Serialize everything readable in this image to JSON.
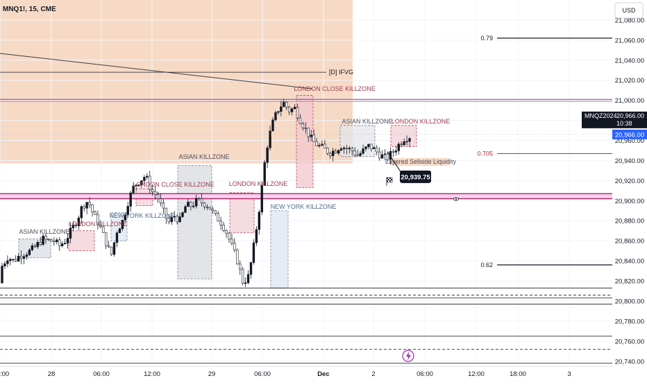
{
  "header": {
    "title": "MNQ1!, 15, CME",
    "currency": "USD"
  },
  "chart_data": {
    "type": "candlestick",
    "y_axis": {
      "range": [
        20735,
        21100
      ],
      "ticks": [
        "21,080.00",
        "21,060.00",
        "21,040.00",
        "21,020.00",
        "21,000.00",
        "20,980.00",
        "20,960.00",
        "20,940.00",
        "20,920.00",
        "20,900.00",
        "20,880.00",
        "20,860.00",
        "20,840.00",
        "20,820.00",
        "20,800.00",
        "20,780.00",
        "20,760.00",
        "20,740.00"
      ],
      "tick_values": [
        21080,
        21060,
        21040,
        21020,
        21000,
        20980,
        20960,
        20940,
        20920,
        20900,
        20880,
        20860,
        20840,
        20820,
        20800,
        20780,
        20760,
        20740
      ]
    },
    "x_axis": {
      "ticks": [
        ":00",
        "28",
        "06:00",
        "12:00",
        "29",
        "06:00",
        "Dec",
        "2",
        "06:00",
        "12:00",
        "18:00",
        "3"
      ]
    },
    "series": [
      {
        "name": "MNQ1!",
        "anchors": [
          [
            20818,
            20835
          ],
          [
            20848,
            20844
          ],
          [
            20846,
            20840
          ],
          [
            20850,
            20845
          ],
          [
            20856,
            20848
          ],
          [
            20862,
            20850
          ],
          [
            20858,
            20855
          ],
          [
            20850,
            20862
          ],
          [
            20856,
            20860
          ],
          [
            20850,
            20860
          ],
          [
            20856,
            20855
          ],
          [
            20872,
            20860
          ],
          [
            20885,
            20870
          ],
          [
            20898,
            20880
          ],
          [
            20905,
            20895
          ],
          [
            20890,
            20900
          ],
          [
            20870,
            20885
          ],
          [
            20860,
            20875
          ],
          [
            20845,
            20860
          ],
          [
            20835,
            20845
          ],
          [
            20855,
            20870
          ],
          [
            20895,
            20880
          ],
          [
            20910,
            20900
          ],
          [
            20925,
            20915
          ],
          [
            20930,
            20920
          ],
          [
            20920,
            20925
          ],
          [
            20905,
            20910
          ],
          [
            20898,
            20905
          ],
          [
            20880,
            20890
          ],
          [
            20870,
            20878
          ],
          [
            20875,
            20885
          ],
          [
            20885,
            20880
          ],
          [
            20890,
            20895
          ],
          [
            20900,
            20895
          ],
          [
            20905,
            20900
          ],
          [
            20902,
            20898
          ],
          [
            20890,
            20895
          ],
          [
            20880,
            20885
          ],
          [
            20875,
            20880
          ],
          [
            20860,
            20870
          ],
          [
            20850,
            20855
          ],
          [
            20835,
            20840
          ],
          [
            20822,
            20818
          ],
          [
            20830,
            20825
          ],
          [
            20875,
            20860
          ],
          [
            20925,
            20900
          ],
          [
            20965,
            20950
          ],
          [
            20985,
            20975
          ],
          [
            20995,
            20990
          ],
          [
            20990,
            20998
          ],
          [
            21000,
            20990
          ],
          [
            20985,
            20992
          ],
          [
            20975,
            20980
          ],
          [
            20965,
            20970
          ],
          [
            20955,
            20960
          ],
          [
            20950,
            20955
          ],
          [
            20945,
            20952
          ],
          [
            20950,
            20948
          ],
          [
            20955,
            20950
          ],
          [
            20952,
            20955
          ],
          [
            20950,
            20952
          ],
          [
            20945,
            20950
          ],
          [
            20948,
            20945
          ],
          [
            20955,
            20950
          ],
          [
            20950,
            20955
          ],
          [
            20945,
            20950
          ],
          [
            20940,
            20945
          ],
          [
            20945,
            20942
          ],
          [
            20952,
            20948
          ],
          [
            20960,
            20955
          ],
          [
            20965,
            20962
          ],
          [
            20966,
            20964
          ]
        ]
      }
    ],
    "levels": [
      {
        "name": "[D] IFVG",
        "value": 21028
      },
      {
        "value": 21001
      },
      {
        "value": 20999
      },
      {
        "value": 20907
      },
      {
        "value": 20902
      },
      {
        "value": 20813
      },
      {
        "value": 20806
      },
      {
        "value": 20803
      },
      {
        "value": 20797
      },
      {
        "value": 20765
      },
      {
        "value": 20752
      },
      {
        "value": 20738
      }
    ],
    "fib_levels": [
      {
        "label": "0.79",
        "value": 21062
      },
      {
        "label": "0.705",
        "value": 20947
      },
      {
        "label": "0.62",
        "value": 20836
      }
    ],
    "annotations": [
      {
        "text": "ASIAN KILLZONE",
        "color": "#4a4e5a"
      },
      {
        "text": "LONDON KILLZONE",
        "color": "#9b3b4c"
      },
      {
        "text": "NEW YORK KILLZONE",
        "color": "#4d6b8f"
      },
      {
        "text": "ASIAN KILLZONE",
        "color": "#4a4e5a"
      },
      {
        "text": "LONDON CLOSE KILLZONE",
        "color": "#9b3b4c"
      },
      {
        "text": "LONDON KILLZONE",
        "color": "#9b3b4c"
      },
      {
        "text": "NEW YORK KILLZONE",
        "color": "#4d6b8f"
      },
      {
        "text": "LONDON CLOSE KILLZONE",
        "color": "#9b3b4c"
      },
      {
        "text": "ASIAN KILLZONE",
        "color": "#4a4e5a"
      },
      {
        "text": "LONDON KILLZONE",
        "color": "#9b3b4c"
      },
      {
        "text": "Layered Sellside Liquidity",
        "color": "#4a4e5a"
      }
    ],
    "current_price": {
      "symbol": "MNQZ2024",
      "price": "20,966.00",
      "countdown": "10:38",
      "axis_price": "20,966.00",
      "value": 20966
    },
    "marker": {
      "price": "20,939.75",
      "value": 20939.75
    },
    "zone": {
      "color": "#f6d3bc",
      "top": 21100,
      "bottom": 20937
    },
    "colors": {
      "up": "#131722",
      "down": "#ffffff",
      "wick": "#131722",
      "accent": "#2962ff",
      "fib": "#131722",
      "fib_705": "#b22833"
    }
  }
}
